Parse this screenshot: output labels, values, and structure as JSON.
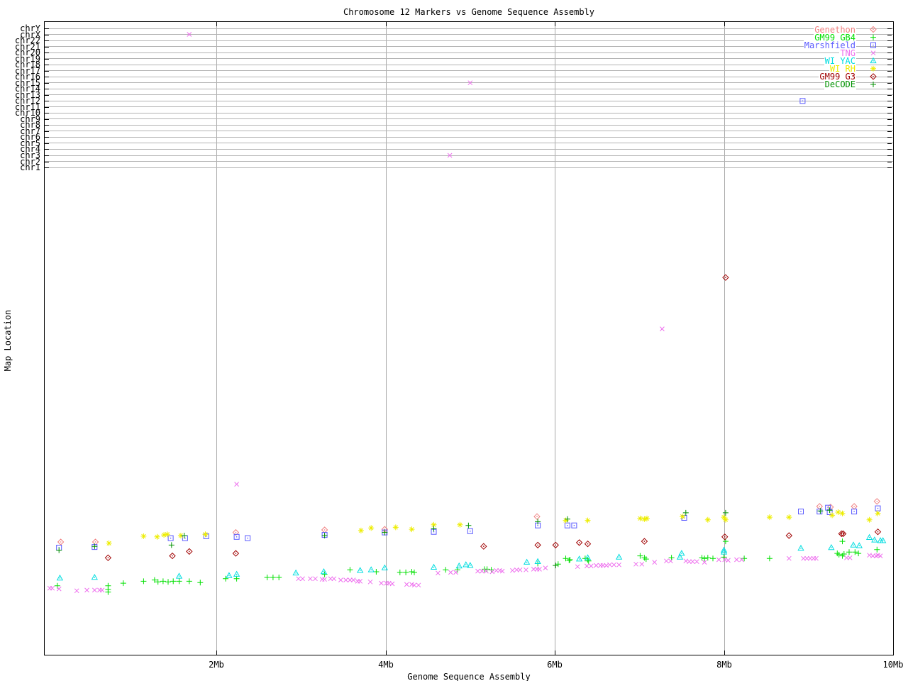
{
  "colors": {
    "background": "#ffffff",
    "plot_border": "#000000",
    "grid_vertical": "#a9a9a9",
    "grid_horizontal": "#b3b3b3",
    "text": "#000000"
  },
  "chart_data": {
    "type": "scatter",
    "title": "Chromosome 12 Markers vs Genome Sequence Assembly",
    "xlabel": "Genome Sequence Assembly",
    "ylabel": "Map Location",
    "x_unit": "Mb",
    "x_range_mb": [
      0,
      10
    ],
    "x_ticks": [
      {
        "label": "2Mb",
        "mb": 2
      },
      {
        "label": "4Mb",
        "mb": 4
      },
      {
        "label": "6Mb",
        "mb": 6
      },
      {
        "label": "8Mb",
        "mb": 8
      },
      {
        "label": "10Mb",
        "mb": 10
      }
    ],
    "x_gridlines_mb": [
      2,
      4,
      6,
      8
    ],
    "grid": "on",
    "legend_position": "top-right-inside",
    "y_axis_note": "Upper rows are chromosome assignments (labeled gridlines); the lower region is an unlabeled map-location scale. Array points are [x_Mb, y_percent_of_plot_height_from_bottom]; object points {x,row} sit on a chromosome gridline.",
    "chromosome_rows_top_to_bottom": [
      "chrY",
      "chrX",
      "chr22",
      "chr21",
      "chr20",
      "chr19",
      "chr18",
      "chr17",
      "chr16",
      "chr15",
      "chr14",
      "chr13",
      "chr12",
      "chr11",
      "chr10",
      "chr9",
      "chr8",
      "chr7",
      "chr6",
      "chr5",
      "chr4",
      "chr3",
      "chr2",
      "chr1"
    ],
    "series": [
      {
        "name": "Genethon",
        "color": "#f08080",
        "marker": "diamond-open-dot",
        "points": [
          [
            0.16,
            17.9
          ],
          [
            0.57,
            17.9
          ],
          [
            2.23,
            19.4
          ],
          [
            3.28,
            19.8
          ],
          [
            3.99,
            19.9
          ],
          [
            5.79,
            21.9
          ],
          [
            9.13,
            23.5
          ],
          [
            9.26,
            23.4
          ],
          [
            9.54,
            23.5
          ],
          [
            9.81,
            24.3
          ]
        ]
      },
      {
        "name": "GM99 GB4",
        "color": "#00e000",
        "marker": "plus",
        "points": [
          [
            0.12,
            11.0
          ],
          [
            0.72,
            11.0
          ],
          [
            0.72,
            10.4
          ],
          [
            0.72,
            10.0
          ],
          [
            0.9,
            11.4
          ],
          [
            1.14,
            11.7
          ],
          [
            1.27,
            11.9
          ],
          [
            1.31,
            11.6
          ],
          [
            1.37,
            11.7
          ],
          [
            1.43,
            11.6
          ],
          [
            1.49,
            11.7
          ],
          [
            1.56,
            11.7
          ],
          [
            1.68,
            11.7
          ],
          [
            1.81,
            11.5
          ],
          [
            2.11,
            12.1
          ],
          [
            2.24,
            12.1
          ],
          [
            2.6,
            12.3
          ],
          [
            2.67,
            12.3
          ],
          [
            2.74,
            12.3
          ],
          [
            3.28,
            12.8
          ],
          [
            3.58,
            13.5
          ],
          [
            3.89,
            13.2
          ],
          [
            4.17,
            13.1
          ],
          [
            4.24,
            13.1
          ],
          [
            4.31,
            13.2
          ],
          [
            4.34,
            13.1
          ],
          [
            4.71,
            13.5
          ],
          [
            4.85,
            13.5
          ],
          [
            5.17,
            13.6
          ],
          [
            5.2,
            13.6
          ],
          [
            5.25,
            13.5
          ],
          [
            5.8,
            14.5
          ],
          [
            6.04,
            14.4
          ],
          [
            6.13,
            15.3
          ],
          [
            6.17,
            15.0
          ],
          [
            6.18,
            15.1
          ],
          [
            6.36,
            15.3
          ],
          [
            6.39,
            15.1
          ],
          [
            6.4,
            14.9
          ],
          [
            7.01,
            15.7
          ],
          [
            7.06,
            15.4
          ],
          [
            7.08,
            15.2
          ],
          [
            7.38,
            15.4
          ],
          [
            7.74,
            15.4
          ],
          [
            7.77,
            15.3
          ],
          [
            7.81,
            15.4
          ],
          [
            7.87,
            15.3
          ],
          [
            8.0,
            15.5
          ],
          [
            8.02,
            18.0
          ],
          [
            8.24,
            15.3
          ],
          [
            8.54,
            15.3
          ],
          [
            9.34,
            16.1
          ],
          [
            9.36,
            15.9
          ],
          [
            9.4,
            15.7
          ],
          [
            9.4,
            18.0
          ],
          [
            9.42,
            16.0
          ],
          [
            9.48,
            16.3
          ],
          [
            9.55,
            16.3
          ],
          [
            9.59,
            16.1
          ],
          [
            9.81,
            16.7
          ]
        ]
      },
      {
        "name": "Marshfield",
        "color": "#5a5aff",
        "marker": "square-open-dot",
        "points": [
          [
            0.14,
            17.0
          ],
          [
            0.56,
            17.1
          ],
          [
            1.46,
            18.5
          ],
          [
            1.63,
            18.5
          ],
          [
            1.88,
            18.8
          ],
          [
            2.24,
            18.7
          ],
          [
            2.37,
            18.5
          ],
          [
            3.28,
            19.0
          ],
          [
            3.99,
            19.4
          ],
          [
            4.57,
            19.5
          ],
          [
            5.0,
            19.6
          ],
          [
            5.8,
            20.5
          ],
          [
            6.15,
            20.5
          ],
          [
            6.23,
            20.5
          ],
          [
            7.53,
            21.7
          ],
          [
            8.91,
            22.7
          ],
          [
            9.13,
            22.7
          ],
          [
            9.23,
            23.3
          ],
          [
            9.25,
            22.6
          ],
          [
            9.54,
            22.7
          ],
          [
            9.82,
            23.2
          ],
          {
            "x": 8.93,
            "row": "chr12"
          }
        ]
      },
      {
        "name": "TNG",
        "color": "#ee6eee",
        "marker": "x-cross",
        "points": [
          {
            "x": 1.68,
            "row": "chrX"
          },
          {
            "x": 5.0,
            "row": "chr15"
          },
          {
            "x": 4.76,
            "row": "chr3"
          },
          [
            2.24,
            27.0
          ],
          [
            7.27,
            51.5
          ],
          [
            0.03,
            10.6
          ],
          [
            0.06,
            10.6
          ],
          [
            0.14,
            10.5
          ],
          [
            0.35,
            10.2
          ],
          [
            0.47,
            10.3
          ],
          [
            0.56,
            10.3
          ],
          [
            0.62,
            10.3
          ],
          [
            0.65,
            10.3
          ],
          [
            2.97,
            12.1
          ],
          [
            3.02,
            12.1
          ],
          [
            3.11,
            12.1
          ],
          [
            3.17,
            12.1
          ],
          [
            3.25,
            12.0
          ],
          [
            3.28,
            12.0
          ],
          [
            3.35,
            12.1
          ],
          [
            3.39,
            12.1
          ],
          [
            3.47,
            11.9
          ],
          [
            3.53,
            11.9
          ],
          [
            3.58,
            11.9
          ],
          [
            3.62,
            11.9
          ],
          [
            3.67,
            11.7
          ],
          [
            3.7,
            11.7
          ],
          [
            3.82,
            11.6
          ],
          [
            3.95,
            11.4
          ],
          [
            4.01,
            11.4
          ],
          [
            4.04,
            11.4
          ],
          [
            4.08,
            11.3
          ],
          [
            4.25,
            11.2
          ],
          [
            4.31,
            11.2
          ],
          [
            4.34,
            11.1
          ],
          [
            4.39,
            11.1
          ],
          [
            4.62,
            13.0
          ],
          [
            4.77,
            13.1
          ],
          [
            4.83,
            13.1
          ],
          [
            5.09,
            13.3
          ],
          [
            5.14,
            13.3
          ],
          [
            5.19,
            13.3
          ],
          [
            5.26,
            13.2
          ],
          [
            5.31,
            13.4
          ],
          [
            5.35,
            13.4
          ],
          [
            5.38,
            13.3
          ],
          [
            5.5,
            13.4
          ],
          [
            5.55,
            13.5
          ],
          [
            5.59,
            13.5
          ],
          [
            5.66,
            13.5
          ],
          [
            5.75,
            13.6
          ],
          [
            5.79,
            13.6
          ],
          [
            5.82,
            13.6
          ],
          [
            5.89,
            13.8
          ],
          [
            6.27,
            14.0
          ],
          [
            6.38,
            14.1
          ],
          [
            6.43,
            14.1
          ],
          [
            6.49,
            14.2
          ],
          [
            6.54,
            14.2
          ],
          [
            6.57,
            14.2
          ],
          [
            6.61,
            14.2
          ],
          [
            6.65,
            14.3
          ],
          [
            6.7,
            14.3
          ],
          [
            6.76,
            14.3
          ],
          [
            6.96,
            14.4
          ],
          [
            7.03,
            14.4
          ],
          [
            7.18,
            14.7
          ],
          [
            7.32,
            14.9
          ],
          [
            7.37,
            14.9
          ],
          [
            7.55,
            14.9
          ],
          [
            7.59,
            14.8
          ],
          [
            7.63,
            14.8
          ],
          [
            7.68,
            14.8
          ],
          [
            7.77,
            14.7
          ],
          [
            7.94,
            15.1
          ],
          [
            8.01,
            15.1
          ],
          [
            8.05,
            15.0
          ],
          [
            8.15,
            15.1
          ],
          [
            8.21,
            15.1
          ],
          [
            8.77,
            15.3
          ],
          [
            8.94,
            15.3
          ],
          [
            8.98,
            15.3
          ],
          [
            9.02,
            15.3
          ],
          [
            9.06,
            15.3
          ],
          [
            9.09,
            15.3
          ],
          [
            9.45,
            15.4
          ],
          [
            9.49,
            15.4
          ],
          [
            9.72,
            15.8
          ],
          [
            9.76,
            15.7
          ],
          [
            9.8,
            15.7
          ],
          [
            9.82,
            15.8
          ],
          [
            9.85,
            15.7
          ]
        ]
      },
      {
        "name": "WI YAC",
        "color": "#00dde0",
        "marker": "triangle-open-dot",
        "points": [
          [
            0.15,
            12.2
          ],
          [
            0.56,
            12.3
          ],
          [
            1.56,
            12.5
          ],
          [
            2.15,
            12.6
          ],
          [
            2.24,
            12.8
          ],
          [
            2.94,
            13.0
          ],
          [
            3.27,
            13.2
          ],
          [
            3.7,
            13.4
          ],
          [
            3.83,
            13.5
          ],
          [
            3.99,
            13.8
          ],
          [
            4.57,
            13.9
          ],
          [
            4.87,
            14.1
          ],
          [
            4.95,
            14.3
          ],
          [
            5.0,
            14.2
          ],
          [
            5.67,
            14.7
          ],
          [
            5.8,
            14.8
          ],
          [
            6.29,
            15.2
          ],
          [
            6.39,
            15.4
          ],
          [
            6.76,
            15.5
          ],
          [
            7.48,
            15.5
          ],
          [
            7.5,
            16.1
          ],
          [
            8.0,
            16.6
          ],
          [
            8.0,
            16.3
          ],
          [
            8.91,
            16.9
          ],
          [
            9.27,
            17.0
          ],
          [
            9.53,
            17.4
          ],
          [
            9.6,
            17.3
          ],
          [
            9.72,
            18.6
          ],
          [
            9.78,
            18.2
          ],
          [
            9.85,
            18.1
          ],
          [
            9.88,
            18.1
          ]
        ]
      },
      {
        "name": "WI RH",
        "color": "#eded00",
        "marker": "star-8",
        "points": [
          [
            0.73,
            17.7
          ],
          [
            1.14,
            18.8
          ],
          [
            1.3,
            18.7
          ],
          [
            1.38,
            19.0
          ],
          [
            1.42,
            19.1
          ],
          [
            1.58,
            18.9
          ],
          [
            1.87,
            19.1
          ],
          [
            3.71,
            19.7
          ],
          [
            3.83,
            20.1
          ],
          [
            4.12,
            20.2
          ],
          [
            4.31,
            19.9
          ],
          [
            4.57,
            20.6
          ],
          [
            4.88,
            20.6
          ],
          [
            6.13,
            21.3
          ],
          [
            6.39,
            21.3
          ],
          [
            7.01,
            21.6
          ],
          [
            7.06,
            21.5
          ],
          [
            7.09,
            21.6
          ],
          [
            7.51,
            21.9
          ],
          [
            7.81,
            21.4
          ],
          [
            8.0,
            21.8
          ],
          [
            8.02,
            21.4
          ],
          [
            8.54,
            21.8
          ],
          [
            8.77,
            21.8
          ],
          [
            9.28,
            22.1
          ],
          [
            9.35,
            22.6
          ],
          [
            9.4,
            22.4
          ],
          [
            9.72,
            21.4
          ],
          [
            9.82,
            22.4
          ]
        ]
      },
      {
        "name": "GM99 G3",
        "color": "#a00000",
        "marker": "diamond-open-dot",
        "points": [
          [
            0.72,
            15.4
          ],
          [
            1.48,
            15.7
          ],
          [
            1.68,
            16.4
          ],
          [
            2.23,
            16.1
          ],
          [
            5.16,
            17.2
          ],
          [
            5.8,
            17.4
          ],
          [
            6.01,
            17.4
          ],
          [
            6.29,
            17.8
          ],
          [
            6.39,
            17.6
          ],
          [
            7.06,
            18.0
          ],
          [
            8.01,
            18.7
          ],
          [
            8.02,
            59.6
          ],
          [
            8.77,
            18.9
          ],
          [
            9.39,
            19.2
          ],
          [
            9.41,
            19.2
          ],
          [
            9.82,
            19.5
          ]
        ]
      },
      {
        "name": "DeCODE",
        "color": "#009200",
        "marker": "plus",
        "points": [
          [
            0.14,
            16.6
          ],
          [
            0.56,
            17.2
          ],
          [
            1.47,
            17.4
          ],
          [
            1.62,
            18.9
          ],
          [
            3.28,
            18.9
          ],
          [
            3.99,
            19.4
          ],
          [
            4.57,
            20.0
          ],
          [
            4.98,
            20.5
          ],
          [
            5.8,
            21.1
          ],
          [
            6.01,
            14.2
          ],
          [
            6.15,
            21.5
          ],
          [
            7.55,
            22.5
          ],
          [
            8.02,
            22.5
          ],
          [
            9.14,
            22.8
          ],
          [
            9.25,
            22.9
          ]
        ]
      }
    ]
  }
}
